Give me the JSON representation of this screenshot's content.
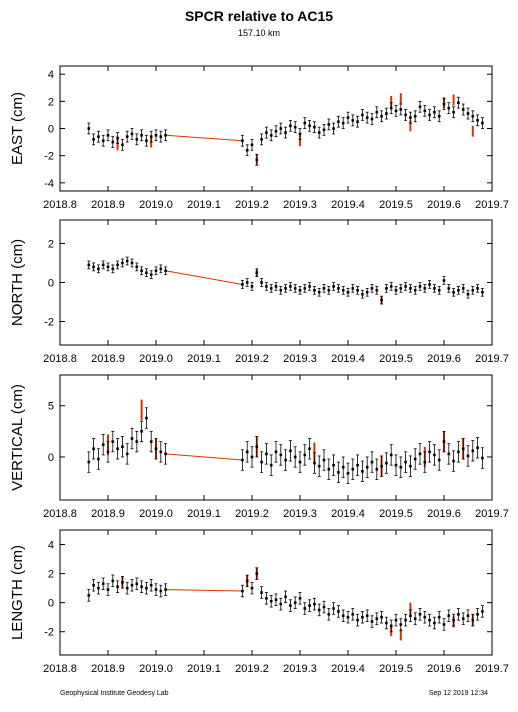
{
  "header": {
    "title": "SPCR relative to AC15",
    "subtitle": "157.10 km"
  },
  "footer": {
    "left": "Geophysical Institute Geodesy Lab",
    "right": "Sep 12 2019 12:34"
  },
  "colors": {
    "points": "#000000",
    "outliers": "#e03000",
    "trend_line": "#e03000"
  },
  "chart_data": [
    {
      "type": "scatter",
      "ylabel": "EAST (cm)",
      "xlim": [
        2018.8,
        2019.7
      ],
      "ylim": [
        -4.6,
        4.6
      ],
      "yticks": [
        -4,
        -2,
        0,
        2,
        4
      ],
      "xticks": [
        "2018.8",
        "2018.9",
        "2019.0",
        "2019.1",
        "2019.2",
        "2019.3",
        "2019.4",
        "2019.5",
        "2019.6",
        "2019.7"
      ],
      "error_bar": 0.4,
      "x": [
        2018.86,
        2018.87,
        2018.88,
        2018.89,
        2018.9,
        2018.91,
        2018.92,
        2018.93,
        2018.94,
        2018.95,
        2018.96,
        2018.97,
        2018.98,
        2018.99,
        2019.0,
        2019.01,
        2019.02,
        2019.18,
        2019.19,
        2019.2,
        2019.21,
        2019.22,
        2019.23,
        2019.24,
        2019.25,
        2019.26,
        2019.27,
        2019.28,
        2019.29,
        2019.3,
        2019.31,
        2019.32,
        2019.33,
        2019.34,
        2019.35,
        2019.36,
        2019.37,
        2019.38,
        2019.39,
        2019.4,
        2019.41,
        2019.42,
        2019.43,
        2019.44,
        2019.45,
        2019.46,
        2019.47,
        2019.48,
        2019.49,
        2019.5,
        2019.51,
        2019.52,
        2019.53,
        2019.54,
        2019.55,
        2019.56,
        2019.57,
        2019.58,
        2019.59,
        2019.6,
        2019.61,
        2019.62,
        2019.63,
        2019.64,
        2019.65,
        2019.66,
        2019.67,
        2019.68
      ],
      "y": [
        0.0,
        -0.8,
        -0.6,
        -0.9,
        -0.5,
        -1.0,
        -0.7,
        -1.2,
        -0.6,
        -0.4,
        -0.8,
        -0.5,
        -0.9,
        -0.6,
        -0.5,
        -0.6,
        -0.5,
        -0.9,
        -1.6,
        -1.2,
        -2.3,
        -0.8,
        -0.3,
        -0.5,
        -0.2,
        0.0,
        -0.3,
        0.2,
        0.1,
        -0.4,
        0.4,
        0.2,
        0.1,
        -0.3,
        -0.1,
        0.3,
        0.0,
        0.5,
        0.4,
        0.8,
        0.6,
        0.5,
        1.0,
        0.8,
        0.7,
        1.2,
        0.9,
        1.1,
        1.5,
        1.3,
        1.4,
        1.0,
        0.8,
        0.9,
        1.6,
        1.3,
        1.0,
        1.2,
        0.9,
        1.8,
        1.5,
        1.2,
        1.9,
        1.4,
        1.1,
        0.9,
        0.6,
        0.4
      ],
      "outlier_x": [
        2018.92,
        2018.99,
        2019.21,
        2019.3,
        2019.49,
        2019.51,
        2019.53,
        2019.6,
        2019.62,
        2019.66
      ],
      "outlier_y": [
        -1.2,
        -1.0,
        -2.3,
        -0.9,
        2.0,
        2.2,
        0.2,
        1.9,
        2.1,
        -0.2
      ]
    },
    {
      "type": "scatter",
      "ylabel": "NORTH (cm)",
      "xlim": [
        2018.8,
        2019.7
      ],
      "ylim": [
        -3.2,
        3.2
      ],
      "yticks": [
        -2,
        0,
        2
      ],
      "xticks": [
        "2018.8",
        "2018.9",
        "2019.0",
        "2019.1",
        "2019.2",
        "2019.3",
        "2019.4",
        "2019.5",
        "2019.6",
        "2019.7"
      ],
      "error_bar": 0.2,
      "x": [
        2018.86,
        2018.87,
        2018.88,
        2018.89,
        2018.9,
        2018.91,
        2018.92,
        2018.93,
        2018.94,
        2018.95,
        2018.96,
        2018.97,
        2018.98,
        2018.99,
        2019.0,
        2019.01,
        2019.02,
        2019.18,
        2019.19,
        2019.2,
        2019.21,
        2019.22,
        2019.23,
        2019.24,
        2019.25,
        2019.26,
        2019.27,
        2019.28,
        2019.29,
        2019.3,
        2019.31,
        2019.32,
        2019.33,
        2019.34,
        2019.35,
        2019.36,
        2019.37,
        2019.38,
        2019.39,
        2019.4,
        2019.41,
        2019.42,
        2019.43,
        2019.44,
        2019.45,
        2019.46,
        2019.47,
        2019.48,
        2019.49,
        2019.5,
        2019.51,
        2019.52,
        2019.53,
        2019.54,
        2019.55,
        2019.56,
        2019.57,
        2019.58,
        2019.59,
        2019.6,
        2019.61,
        2019.62,
        2019.63,
        2019.64,
        2019.65,
        2019.66,
        2019.67,
        2019.68
      ],
      "y": [
        0.9,
        0.8,
        0.7,
        0.9,
        0.8,
        0.7,
        0.9,
        1.0,
        1.1,
        1.0,
        0.8,
        0.6,
        0.5,
        0.4,
        0.6,
        0.7,
        0.6,
        -0.1,
        0.0,
        -0.2,
        0.5,
        0.0,
        -0.2,
        -0.3,
        -0.2,
        -0.4,
        -0.3,
        -0.2,
        -0.3,
        -0.4,
        -0.3,
        -0.2,
        -0.4,
        -0.5,
        -0.3,
        -0.4,
        -0.2,
        -0.3,
        -0.4,
        -0.5,
        -0.3,
        -0.4,
        -0.6,
        -0.5,
        -0.3,
        -0.4,
        -0.9,
        -0.3,
        -0.2,
        -0.4,
        -0.3,
        -0.2,
        -0.3,
        -0.4,
        -0.2,
        -0.3,
        -0.1,
        -0.3,
        -0.4,
        0.1,
        -0.3,
        -0.5,
        -0.4,
        -0.3,
        -0.6,
        -0.4,
        -0.3,
        -0.5
      ],
      "outlier_x": [
        2019.21,
        2019.47
      ],
      "outlier_y": [
        0.5,
        -0.9
      ]
    },
    {
      "type": "scatter",
      "ylabel": "VERTICAL (cm)",
      "xlim": [
        2018.8,
        2019.7
      ],
      "ylim": [
        -4.2,
        8.0
      ],
      "yticks": [
        0,
        5
      ],
      "xticks": [
        "2018.8",
        "2018.9",
        "2019.0",
        "2019.1",
        "2019.2",
        "2019.3",
        "2019.4",
        "2019.5",
        "2019.6",
        "2019.7"
      ],
      "error_bar": 1.0,
      "x": [
        2018.86,
        2018.87,
        2018.88,
        2018.89,
        2018.9,
        2018.91,
        2018.92,
        2018.93,
        2018.94,
        2018.95,
        2018.96,
        2018.97,
        2018.98,
        2018.99,
        2019.0,
        2019.01,
        2019.02,
        2019.18,
        2019.19,
        2019.2,
        2019.21,
        2019.22,
        2019.23,
        2019.24,
        2019.25,
        2019.26,
        2019.27,
        2019.28,
        2019.29,
        2019.3,
        2019.31,
        2019.32,
        2019.33,
        2019.34,
        2019.35,
        2019.36,
        2019.37,
        2019.38,
        2019.39,
        2019.4,
        2019.41,
        2019.42,
        2019.43,
        2019.44,
        2019.45,
        2019.46,
        2019.47,
        2019.48,
        2019.49,
        2019.5,
        2019.51,
        2019.52,
        2019.53,
        2019.54,
        2019.55,
        2019.56,
        2019.57,
        2019.58,
        2019.59,
        2019.6,
        2019.61,
        2019.62,
        2019.63,
        2019.64,
        2019.65,
        2019.66,
        2019.67,
        2019.68
      ],
      "y": [
        -0.5,
        0.8,
        -0.2,
        1.2,
        0.5,
        1.5,
        0.8,
        1.0,
        0.3,
        1.8,
        1.5,
        2.5,
        3.8,
        1.5,
        0.8,
        0.5,
        0.3,
        -0.3,
        0.5,
        0.0,
        1.0,
        -0.5,
        0.3,
        -0.8,
        0.5,
        0.2,
        -0.3,
        0.6,
        0.0,
        -0.5,
        0.2,
        0.8,
        -0.6,
        -0.9,
        -0.3,
        -1.2,
        -0.8,
        -1.5,
        -1.0,
        -1.6,
        -1.2,
        -0.8,
        -1.4,
        -1.0,
        -0.5,
        -1.2,
        -0.9,
        -0.6,
        0.2,
        -0.8,
        -1.0,
        -0.5,
        -0.9,
        -0.2,
        0.3,
        -0.5,
        0.5,
        0.2,
        -0.3,
        1.5,
        0.3,
        -0.4,
        0.5,
        0.8,
        0.1,
        0.6,
        0.9,
        -0.1
      ],
      "outlier_x": [
        2018.9,
        2018.97,
        2019.0,
        2019.21,
        2019.33,
        2019.47,
        2019.56,
        2019.6,
        2019.64
      ],
      "outlier_y": [
        1.2,
        4.6,
        0.8,
        1.0,
        0.4,
        -0.9,
        0.0,
        1.5,
        0.8
      ]
    },
    {
      "type": "scatter",
      "ylabel": "LENGTH (cm)",
      "xlim": [
        2018.8,
        2019.7
      ],
      "ylim": [
        -3.6,
        5.0
      ],
      "yticks": [
        -2,
        0,
        2,
        4
      ],
      "xticks": [
        "2018.8",
        "2018.9",
        "2019.0",
        "2019.1",
        "2019.2",
        "2019.3",
        "2019.4",
        "2019.5",
        "2019.6",
        "2019.7"
      ],
      "error_bar": 0.4,
      "x": [
        2018.86,
        2018.87,
        2018.88,
        2018.89,
        2018.9,
        2018.91,
        2018.92,
        2018.93,
        2018.94,
        2018.95,
        2018.96,
        2018.97,
        2018.98,
        2018.99,
        2019.0,
        2019.01,
        2019.02,
        2019.18,
        2019.19,
        2019.2,
        2019.21,
        2019.22,
        2019.23,
        2019.24,
        2019.25,
        2019.26,
        2019.27,
        2019.28,
        2019.29,
        2019.3,
        2019.31,
        2019.32,
        2019.33,
        2019.34,
        2019.35,
        2019.36,
        2019.37,
        2019.38,
        2019.39,
        2019.4,
        2019.41,
        2019.42,
        2019.43,
        2019.44,
        2019.45,
        2019.46,
        2019.47,
        2019.48,
        2019.49,
        2019.5,
        2019.51,
        2019.52,
        2019.53,
        2019.54,
        2019.55,
        2019.56,
        2019.57,
        2019.58,
        2019.59,
        2019.6,
        2019.61,
        2019.62,
        2019.63,
        2019.64,
        2019.65,
        2019.66,
        2019.67,
        2019.68
      ],
      "y": [
        0.5,
        1.2,
        1.0,
        1.3,
        0.9,
        1.5,
        1.1,
        1.4,
        1.0,
        1.2,
        1.3,
        1.1,
        1.0,
        1.2,
        0.9,
        0.8,
        0.9,
        0.8,
        1.5,
        1.0,
        2.0,
        0.7,
        0.3,
        0.1,
        0.2,
        -0.1,
        0.4,
        -0.2,
        0.0,
        0.3,
        -0.4,
        -0.2,
        -0.1,
        -0.5,
        -0.3,
        -0.8,
        -0.4,
        -0.6,
        -0.9,
        -1.0,
        -0.8,
        -1.2,
        -1.0,
        -0.9,
        -1.3,
        -1.1,
        -1.0,
        -1.4,
        -1.6,
        -1.2,
        -1.5,
        -1.2,
        -0.9,
        -1.1,
        -0.8,
        -1.0,
        -1.2,
        -1.4,
        -1.0,
        -1.5,
        -0.9,
        -1.2,
        -0.8,
        -1.1,
        -0.9,
        -1.2,
        -0.8,
        -0.6
      ],
      "outlier_x": [
        2018.93,
        2019.19,
        2019.21,
        2019.49,
        2019.51,
        2019.53,
        2019.62,
        2019.66
      ],
      "outlier_y": [
        1.4,
        1.5,
        2.0,
        -1.9,
        -2.2,
        -0.4,
        -1.3,
        -1.2
      ]
    }
  ]
}
